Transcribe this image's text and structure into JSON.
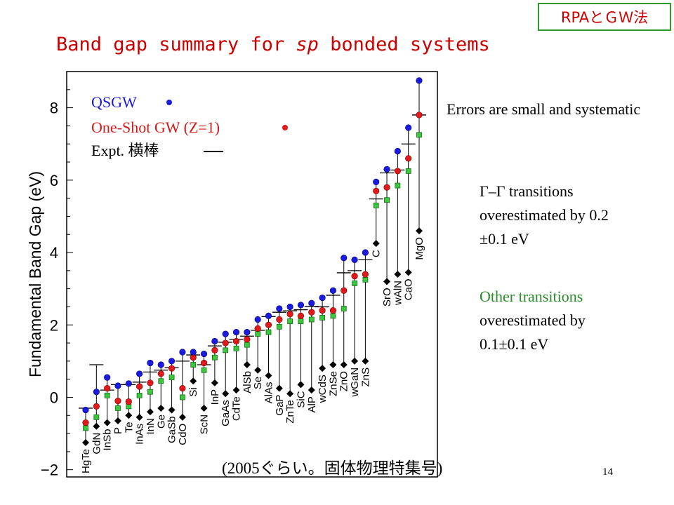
{
  "tag": "RPAとＧＷ法",
  "title_pre": "Band gap summary for ",
  "title_em": "sp",
  "title_post": " bonded systems",
  "legend": [
    {
      "label": "QSGW",
      "color": "#1818d8"
    },
    {
      "label": "One-Shot GW (Z=1)",
      "color": "#d81818"
    },
    {
      "label": "Expt. 横棒",
      "color": "#000000"
    }
  ],
  "note_errors": "Errors are small and systematic",
  "note_gg_1": "Γ–Γ transitions",
  "note_gg_2": "overestimated by 0.2",
  "note_gg_3": "±0.1 eV",
  "note_other_1": "Other transitions",
  "note_other_2": "overestimated by",
  "note_other_3": "0.1±0.1 eV",
  "footer": "(2005ぐらい。固体物理特集号)",
  "page_number": "14",
  "chart_data": {
    "type": "scatter",
    "ylabel": "Fundamental Band Gap (eV)",
    "ylim": [
      -2.2,
      9.0
    ],
    "yticks": [
      -2,
      0,
      2,
      4,
      6,
      8
    ],
    "categories": [
      "HgTe",
      "GdN",
      "InSb",
      "P",
      "Te",
      "InAs",
      "InN",
      "Ge",
      "GaSb",
      "CdO",
      "Si",
      "ScN",
      "InP",
      "GaAs",
      "CdTe",
      "AlSb",
      "Se",
      "AlAs",
      "GaP",
      "ZnTe",
      "SiC",
      "AlP",
      "wCdS",
      "ZnSe",
      "ZnO",
      "wGaN",
      "ZnS",
      "C",
      "SrO",
      "wAlN",
      "CaO",
      "MgO"
    ],
    "series": [
      {
        "name": "QSGW",
        "color": "#1818d8",
        "values": [
          -0.35,
          0.15,
          0.55,
          0.32,
          0.38,
          0.65,
          0.95,
          0.9,
          1.0,
          1.25,
          1.25,
          1.2,
          1.55,
          1.75,
          1.8,
          1.8,
          2.15,
          2.25,
          2.45,
          2.5,
          2.55,
          2.6,
          2.75,
          2.95,
          3.85,
          3.8,
          4.0,
          5.95,
          6.3,
          6.8,
          7.45,
          8.75
        ]
      },
      {
        "name": "One-Shot GW (Z=1)",
        "color": "#d81818",
        "values": [
          -0.7,
          -0.25,
          0.25,
          -0.1,
          -0.12,
          0.3,
          0.4,
          0.65,
          0.8,
          0.25,
          1.1,
          0.95,
          1.3,
          1.5,
          1.55,
          1.6,
          1.9,
          2.0,
          2.15,
          2.3,
          2.25,
          2.35,
          2.4,
          2.4,
          2.95,
          3.35,
          3.4,
          5.7,
          5.8,
          6.25,
          6.6,
          7.8
        ]
      },
      {
        "name": "Expt.",
        "color": "#000000",
        "values": [
          -0.3,
          0.9,
          0.2,
          0.35,
          0.35,
          0.42,
          0.7,
          0.75,
          0.82,
          1.0,
          1.17,
          0.9,
          1.42,
          1.52,
          1.6,
          1.69,
          1.85,
          2.23,
          2.35,
          2.39,
          2.42,
          2.51,
          2.5,
          2.82,
          3.44,
          3.5,
          3.8,
          5.48,
          6.2,
          6.28,
          7.0,
          7.8
        ]
      },
      {
        "name": "",
        "color": "#2aa82a",
        "values": [
          -0.85,
          -0.55,
          0.05,
          -0.3,
          -0.25,
          0.05,
          0.15,
          0.45,
          0.55,
          0.0,
          0.9,
          0.75,
          1.1,
          1.3,
          1.35,
          1.45,
          1.75,
          1.8,
          1.95,
          2.1,
          2.1,
          2.15,
          2.2,
          2.25,
          2.45,
          3.15,
          3.25,
          5.3,
          5.45,
          5.85,
          6.25,
          7.25
        ]
      },
      {
        "name": "",
        "color": "#000000",
        "values": [
          -1.25,
          -0.8,
          -0.7,
          -0.65,
          -0.5,
          -0.55,
          -0.4,
          -0.3,
          -0.35,
          -0.55,
          0.45,
          -0.3,
          0.4,
          0.1,
          0.2,
          0.9,
          0.75,
          0.6,
          0.25,
          0.1,
          0.35,
          0.2,
          0.8,
          0.9,
          0.9,
          1.0,
          1.0,
          4.25,
          3.2,
          3.4,
          3.45,
          4.6
        ]
      }
    ]
  }
}
